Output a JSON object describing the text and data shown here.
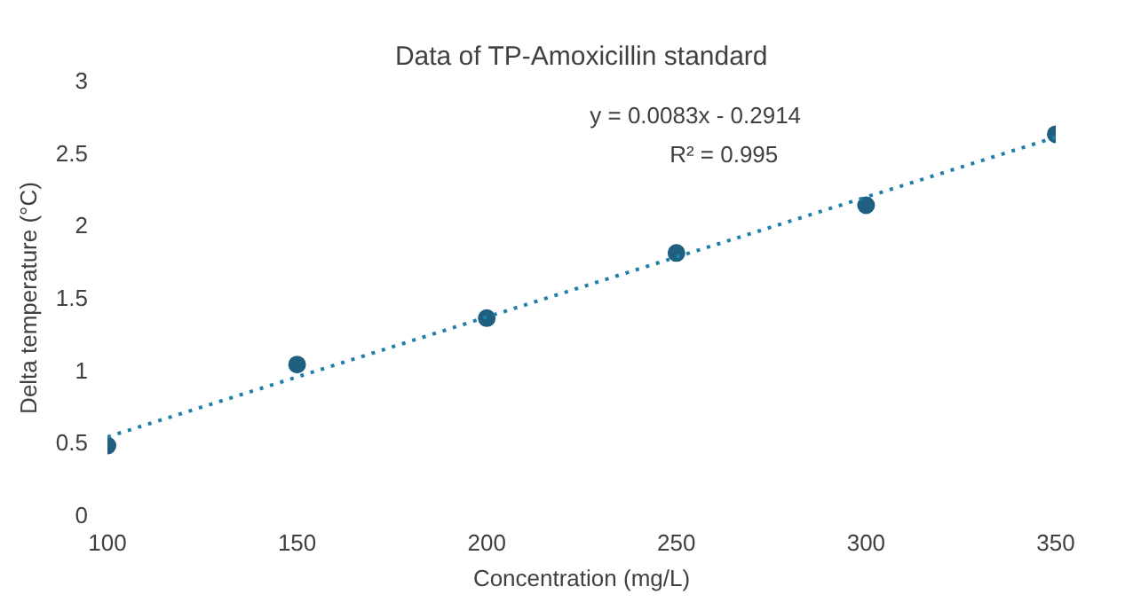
{
  "chart_data": {
    "type": "scatter",
    "title": "Data of TP-Amoxicillin standard",
    "xlabel": "Concentration (mg/L)",
    "ylabel": "Delta temperature (°C)",
    "x": [
      100,
      150,
      200,
      250,
      300,
      350
    ],
    "series": [
      {
        "color": "#1f5f7f",
        "marker": "circle",
        "values": [
          0.48,
          1.04,
          1.36,
          1.81,
          2.14,
          2.63
        ]
      },
      {
        "type": "line",
        "color": "#1f7fa8",
        "line_style": "dotted",
        "marker": "none",
        "x": [
          100,
          350
        ],
        "values": [
          0.54,
          2.61
        ]
      }
    ],
    "annotations": [
      "y = 0.0083x - 0.2914",
      "R² = 0.995"
    ],
    "xlim": [
      100,
      350
    ],
    "xticks": [
      100,
      150,
      200,
      250,
      300,
      350
    ],
    "ylim": [
      0,
      3
    ],
    "yticks": [
      0,
      0.5,
      1,
      1.5,
      2,
      2.5,
      3
    ],
    "grid": false
  }
}
